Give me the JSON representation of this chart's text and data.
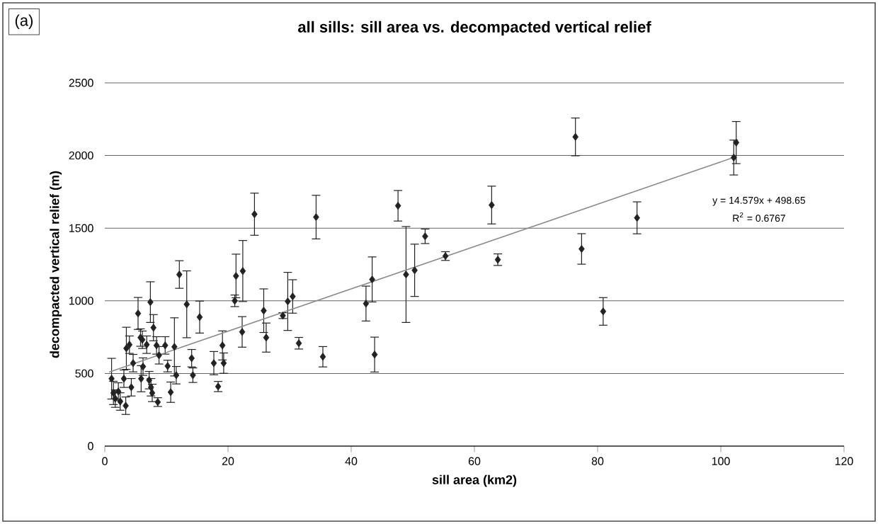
{
  "chart_data": {
    "type": "scatter",
    "title": "all sills: sill area vs. decompacted vertical relief",
    "xlabel": "sill area (km2)",
    "ylabel": "decompacted vertical relief (m)",
    "annotations": [
      "(a)",
      "y = 14.579x + 498.65",
      "R$^{2}$ = 0.6767"
    ],
    "xlim": [
      0,
      120
    ],
    "ylim": [
      0,
      2500
    ],
    "xticks": [
      0,
      20,
      40,
      60,
      80,
      100,
      120
    ],
    "yticks": [
      0,
      500,
      1000,
      1500,
      2000,
      2500
    ],
    "grid": "y",
    "series": [
      {
        "color": "#222222",
        "marker": "diamond",
        "x": [
          102.5,
          102.1,
          86.4,
          76.4,
          62.8,
          52.0,
          55.3,
          48.9,
          50.3,
          63.8,
          77.4,
          80.9,
          47.6,
          34.3,
          24.3,
          43.4,
          42.4,
          43.8,
          35.4,
          31.5,
          30.5,
          29.7,
          28.9,
          25.8,
          26.2,
          22.3,
          22.4,
          21.3,
          21.1,
          19.1,
          19.3,
          17.7,
          18.4,
          12.1,
          13.3,
          15.4,
          7.4,
          5.4,
          5.8,
          3.5,
          4.0,
          6.1,
          6.8,
          7.9,
          8.4,
          8.8,
          9.8,
          11.3,
          10.2,
          11.6,
          10.7,
          8.6,
          7.2,
          7.5,
          7.7,
          5.9,
          6.2,
          4.3,
          4.6,
          3.1,
          3.4,
          1.1,
          1.4,
          1.7,
          2.5,
          2.2,
          14.1,
          14.3
        ],
        "values": [
          2089,
          1986,
          1571,
          2128,
          1659,
          1444,
          1308,
          1181,
          1210,
          1283,
          1357,
          927,
          1654,
          1576,
          1596,
          1147,
          981,
          630,
          615,
          708,
          1030,
          996,
          898,
          932,
          747,
          786,
          1205,
          1171,
          1000,
          693,
          571,
          571,
          410,
          1181,
          976,
          888,
          991,
          913,
          747,
          673,
          698,
          732,
          698,
          815,
          693,
          625,
          693,
          683,
          551,
          488,
          371,
          303,
          454,
          405,
          366,
          464,
          547,
          405,
          571,
          464,
          278,
          464,
          366,
          327,
          307,
          376,
          605,
          488
        ],
        "errors": [
          145,
          120,
          110,
          130,
          130,
          50,
          30,
          330,
          180,
          40,
          105,
          95,
          105,
          150,
          145,
          155,
          120,
          120,
          70,
          40,
          115,
          200,
          20,
          150,
          100,
          105,
          210,
          150,
          40,
          100,
          70,
          80,
          35,
          95,
          230,
          110,
          140,
          110,
          60,
          145,
          60,
          60,
          60,
          90,
          60,
          60,
          60,
          200,
          40,
          60,
          70,
          30,
          60,
          60,
          60,
          90,
          60,
          60,
          60,
          60,
          60,
          140,
          80,
          60,
          60,
          60,
          60,
          50
        ]
      },
      {
        "type": "line",
        "color": "#8c8c8c",
        "marker": "none",
        "x": [
          0.7,
          102.1
        ],
        "values": [
          509,
          1987
        ]
      }
    ]
  }
}
